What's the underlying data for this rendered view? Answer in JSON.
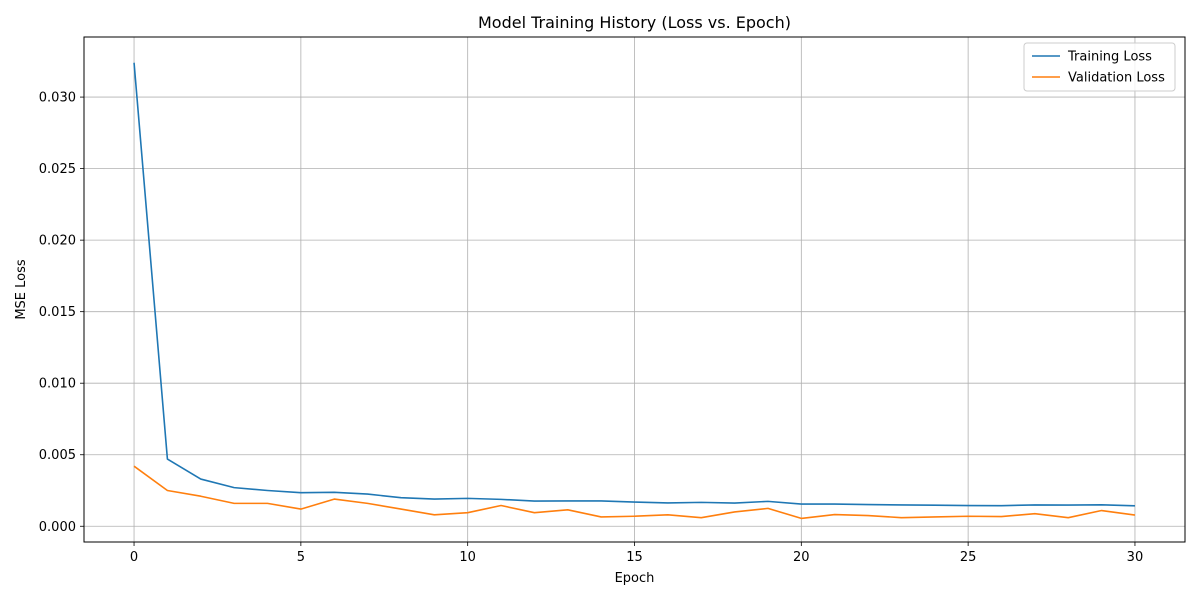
{
  "chart_data": {
    "type": "line",
    "title": "Model Training History (Loss vs. Epoch)",
    "xlabel": "Epoch",
    "ylabel": "MSE Loss",
    "xlim": [
      -1.5,
      31.5
    ],
    "ylim": [
      -0.0011,
      0.0342
    ],
    "xticks": [
      0,
      5,
      10,
      15,
      20,
      25,
      30
    ],
    "yticks": [
      0.0,
      0.005,
      0.01,
      0.015,
      0.02,
      0.025,
      0.03
    ],
    "xtick_labels": [
      "0",
      "5",
      "10",
      "15",
      "20",
      "25",
      "30"
    ],
    "ytick_labels": [
      "0.000",
      "0.005",
      "0.010",
      "0.015",
      "0.020",
      "0.025",
      "0.030"
    ],
    "grid": true,
    "legend_position": "top-right",
    "x": [
      0,
      1,
      2,
      3,
      4,
      5,
      6,
      7,
      8,
      9,
      10,
      11,
      12,
      13,
      14,
      15,
      16,
      17,
      18,
      19,
      20,
      21,
      22,
      23,
      24,
      25,
      26,
      27,
      28,
      29,
      30
    ],
    "series": [
      {
        "name": "Training Loss",
        "color": "#1f77b4",
        "values": [
          0.0324,
          0.0047,
          0.0033,
          0.0027,
          0.0025,
          0.00235,
          0.00237,
          0.00225,
          0.002,
          0.0019,
          0.00195,
          0.00188,
          0.00176,
          0.00177,
          0.00177,
          0.00169,
          0.00163,
          0.00167,
          0.00162,
          0.00174,
          0.00155,
          0.00155,
          0.00152,
          0.00149,
          0.00147,
          0.00145,
          0.00144,
          0.00149,
          0.00148,
          0.0015,
          0.00143
        ]
      },
      {
        "name": "Validation Loss",
        "color": "#ff7f0e",
        "values": [
          0.0042,
          0.0025,
          0.0021,
          0.0016,
          0.0016,
          0.0012,
          0.0019,
          0.0016,
          0.0012,
          0.0008,
          0.00095,
          0.00145,
          0.00095,
          0.00115,
          0.00065,
          0.0007,
          0.0008,
          0.0006,
          0.001,
          0.00125,
          0.00055,
          0.00082,
          0.00075,
          0.0006,
          0.00065,
          0.0007,
          0.00068,
          0.00088,
          0.0006,
          0.0011,
          0.00078
        ]
      }
    ]
  }
}
